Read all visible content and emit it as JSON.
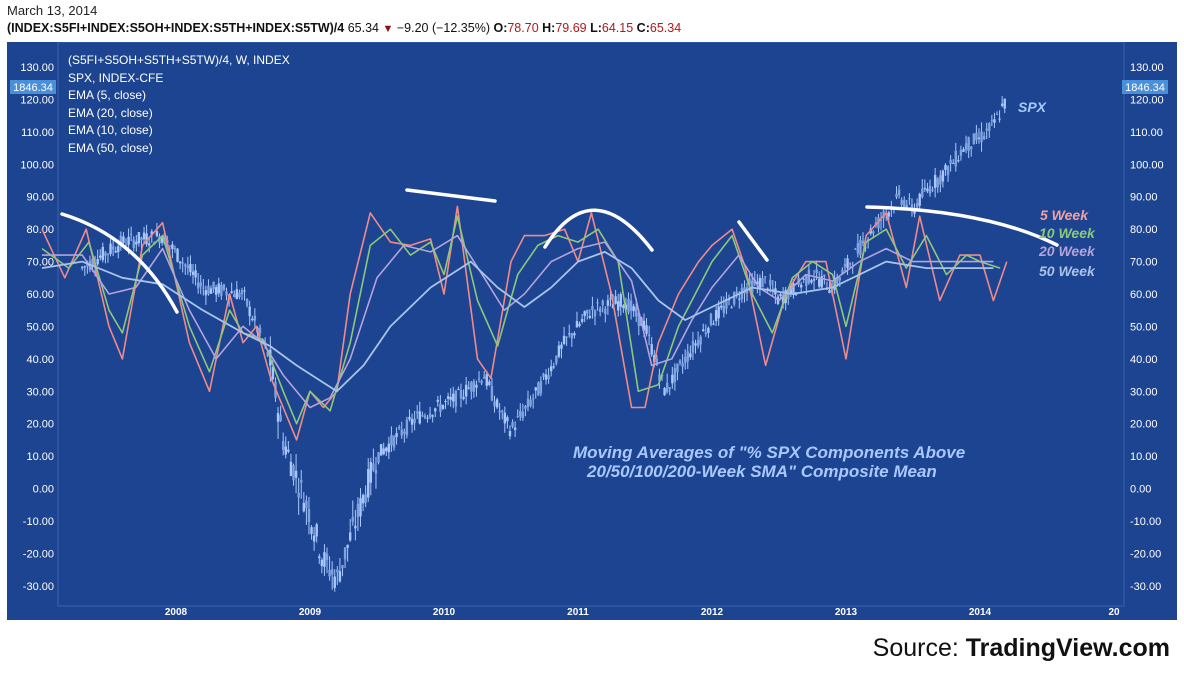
{
  "header": {
    "date": "March 13, 2014",
    "symbol": "(INDEX:S5FI+INDEX:S5OH+INDEX:S5TH+INDEX:S5TW)/4",
    "last": "65.34",
    "change": "−9.20 (−12.35%)",
    "open_label": "O:",
    "open": "78.70",
    "high_label": "H:",
    "high": "79.69",
    "low_label": "L:",
    "low": "64.15",
    "close_label": "C:",
    "close": "65.34"
  },
  "legend": {
    "line1": "(S5FI+S5OH+S5TH+S5TW)/4, W, INDEX",
    "line2": "SPX, INDEX-CFE",
    "line3": "EMA (5, close)",
    "line4": "EMA (20, close)",
    "line5": "EMA (10, close)",
    "line6": "EMA (50, close)"
  },
  "source": {
    "prefix": "Source: ",
    "name": "TradingView.com"
  },
  "chart_data": {
    "type": "line",
    "title": "",
    "ylim": [
      -35,
      135
    ],
    "y_ticks": [
      "130.00",
      "120.00",
      "110.00",
      "100.00",
      "90.00",
      "80.00",
      "70.00",
      "60.00",
      "50.00",
      "40.00",
      "30.00",
      "20.00",
      "10.00",
      "0.00",
      "-10.00",
      "-20.00",
      "-30.00"
    ],
    "x_ticks": [
      "2008",
      "2009",
      "2010",
      "2011",
      "2012",
      "2013",
      "2014",
      "20"
    ],
    "price_badge": "1846.34",
    "annotation_line1": "Moving Averages of \"% SPX Components Above",
    "annotation_line2": "20/50/100/200-Week SMA\" Composite Mean",
    "series_labels": [
      "SPX",
      "5 Week",
      "10 Week",
      "20 Week",
      "50 Week"
    ],
    "series": [
      {
        "name": "5 Week",
        "color": "#f08a8a",
        "t": [
          2007.0,
          2007.17,
          2007.33,
          2007.5,
          2007.6,
          2007.75,
          2007.9,
          2008.1,
          2008.25,
          2008.4,
          2008.5,
          2008.6,
          2008.7,
          2008.8,
          2008.9,
          2009.0,
          2009.1,
          2009.2,
          2009.3,
          2009.45,
          2009.6,
          2009.75,
          2009.9,
          2010.0,
          2010.1,
          2010.25,
          2010.35,
          2010.5,
          2010.6,
          2010.75,
          2010.9,
          2011.0,
          2011.1,
          2011.25,
          2011.4,
          2011.5,
          2011.6,
          2011.75,
          2011.9,
          2012.0,
          2012.15,
          2012.25,
          2012.4,
          2012.55,
          2012.7,
          2012.85,
          2013.0,
          2013.15,
          2013.3,
          2013.45,
          2013.55,
          2013.7,
          2013.85,
          2014.0,
          2014.1,
          2014.2
        ],
        "v": [
          80,
          65,
          80,
          50,
          40,
          75,
          82,
          45,
          30,
          60,
          45,
          50,
          35,
          25,
          15,
          30,
          25,
          30,
          60,
          85,
          76,
          75,
          77,
          60,
          87,
          40,
          34,
          70,
          78,
          78,
          80,
          70,
          85,
          60,
          25,
          25,
          45,
          60,
          70,
          75,
          80,
          68,
          38,
          60,
          70,
          70,
          40,
          78,
          85,
          62,
          84,
          58,
          72,
          72,
          58,
          70
        ]
      },
      {
        "name": "10 Week",
        "color": "#8dc87a",
        "t": [
          2007.0,
          2007.2,
          2007.35,
          2007.5,
          2007.6,
          2007.75,
          2007.9,
          2008.1,
          2008.25,
          2008.4,
          2008.5,
          2008.65,
          2008.8,
          2008.9,
          2009.0,
          2009.15,
          2009.3,
          2009.45,
          2009.6,
          2009.75,
          2009.9,
          2010.0,
          2010.1,
          2010.25,
          2010.4,
          2010.55,
          2010.7,
          2010.85,
          2011.0,
          2011.15,
          2011.3,
          2011.45,
          2011.6,
          2011.75,
          2011.9,
          2012.0,
          2012.15,
          2012.3,
          2012.45,
          2012.6,
          2012.75,
          2012.9,
          2013.0,
          2013.15,
          2013.3,
          2013.45,
          2013.6,
          2013.75,
          2013.9,
          2014.0,
          2014.15
        ],
        "v": [
          74,
          68,
          76,
          55,
          48,
          72,
          78,
          50,
          36,
          55,
          48,
          46,
          30,
          20,
          30,
          24,
          45,
          75,
          80,
          72,
          76,
          66,
          84,
          58,
          44,
          66,
          75,
          78,
          76,
          80,
          70,
          30,
          32,
          50,
          62,
          70,
          78,
          60,
          48,
          65,
          70,
          66,
          50,
          76,
          80,
          68,
          78,
          66,
          72,
          70,
          68
        ]
      },
      {
        "name": "20 Week",
        "color": "#b4a3dc",
        "t": [
          2007.0,
          2007.3,
          2007.5,
          2007.7,
          2007.9,
          2008.1,
          2008.3,
          2008.5,
          2008.65,
          2008.8,
          2009.0,
          2009.15,
          2009.3,
          2009.5,
          2009.7,
          2009.9,
          2010.1,
          2010.3,
          2010.45,
          2010.6,
          2010.8,
          2011.0,
          2011.2,
          2011.4,
          2011.55,
          2011.7,
          2011.85,
          2012.0,
          2012.2,
          2012.35,
          2012.5,
          2012.7,
          2012.9,
          2013.1,
          2013.3,
          2013.5,
          2013.7,
          2013.9,
          2014.1
        ],
        "v": [
          72,
          72,
          60,
          62,
          74,
          55,
          40,
          50,
          45,
          35,
          25,
          28,
          40,
          65,
          75,
          73,
          78,
          65,
          55,
          60,
          70,
          74,
          76,
          64,
          38,
          40,
          52,
          62,
          72,
          62,
          58,
          66,
          64,
          70,
          74,
          70,
          70,
          70,
          70
        ]
      },
      {
        "name": "50 Week",
        "color": "#a8c4ea",
        "t": [
          2007.0,
          2007.3,
          2007.6,
          2007.9,
          2008.2,
          2008.5,
          2008.7,
          2008.9,
          2009.2,
          2009.4,
          2009.6,
          2009.9,
          2010.2,
          2010.4,
          2010.6,
          2010.8,
          2011.0,
          2011.2,
          2011.4,
          2011.6,
          2011.8,
          2012.0,
          2012.3,
          2012.6,
          2012.9,
          2013.1,
          2013.3,
          2013.6,
          2013.9,
          2014.1
        ],
        "v": [
          68,
          70,
          65,
          63,
          55,
          48,
          44,
          38,
          30,
          38,
          50,
          62,
          70,
          62,
          56,
          62,
          70,
          73,
          68,
          58,
          52,
          56,
          62,
          60,
          62,
          66,
          70,
          68,
          68,
          68
        ]
      }
    ],
    "spx": {
      "name": "SPX",
      "color": "#a8c8ff",
      "t": [
        2007.3,
        2007.6,
        2007.9,
        2008.2,
        2008.5,
        2008.7,
        2008.8,
        2009.0,
        2009.1,
        2009.2,
        2009.5,
        2009.8,
        2010.1,
        2010.3,
        2010.4,
        2010.5,
        2010.7,
        2010.9,
        2011.1,
        2011.35,
        2011.5,
        2011.65,
        2011.8,
        2012.0,
        2012.25,
        2012.4,
        2012.5,
        2012.75,
        2012.9,
        2013.0,
        2013.2,
        2013.4,
        2013.5,
        2013.6,
        2013.75,
        2013.9,
        2014.0,
        2014.1,
        2014.2
      ],
      "v": [
        68,
        76,
        78,
        62,
        60,
        40,
        15,
        -8,
        -22,
        -28,
        10,
        22,
        28,
        35,
        25,
        18,
        30,
        45,
        55,
        58,
        50,
        30,
        40,
        52,
        62,
        64,
        58,
        66,
        62,
        68,
        80,
        90,
        86,
        92,
        98,
        106,
        108,
        112,
        120
      ]
    }
  }
}
